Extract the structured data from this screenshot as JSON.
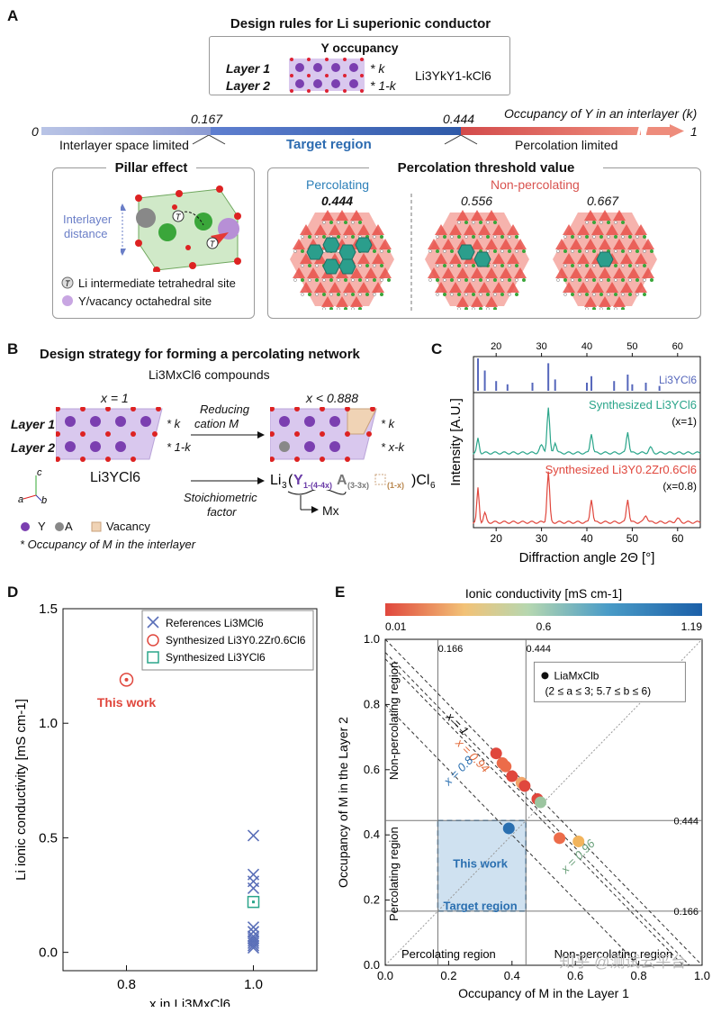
{
  "panelA": {
    "letter": "A",
    "title": "Design rules for Li superionic conductor",
    "y_occupancy": {
      "title": "Y occupancy",
      "layer1": "Layer 1",
      "layer2": "Layer 2",
      "k1": "* k",
      "k2": "* 1-k",
      "formula": "Li3YkY1-kCl6"
    },
    "bar": {
      "zero": "0",
      "v1": "0.167",
      "v2": "0.444",
      "one": "1",
      "axis_title": "Occupancy of Y in an interlayer (k)",
      "left_label": "Interlayer space limited",
      "mid_label": "Target region",
      "right_label": "Percolation limited"
    },
    "pillar": {
      "title": "Pillar effect",
      "interlayer": "Interlayer",
      "distance": "distance",
      "T": "T",
      "legend1": "Li intermediate tetrahedral site",
      "legend2": "Y/vacancy octahedral site"
    },
    "percolation": {
      "title": "Percolation threshold value",
      "percolating": "Percolating",
      "non_percolating": "Non-percolating",
      "v1": "0.444",
      "v2": "0.556",
      "v3": "0.667"
    }
  },
  "panelB": {
    "letter": "B",
    "title": "Design strategy for forming a percolating network",
    "compounds": "Li3MxCl6 compounds",
    "x1": "x = 1",
    "x2": "x < 0.888",
    "layer1": "Layer 1",
    "layer2": "Layer 2",
    "k": "* k",
    "one_k": "* 1-k",
    "x_k": "* x-k",
    "reducing1": "Reducing",
    "reducing2": "cation M",
    "li3ycl6": "Li3YCl6",
    "stoich1": "Stoichiometric",
    "stoich2": "factor",
    "mx": "Mx",
    "legend": [
      "Y",
      "A",
      "Vacancy"
    ],
    "footnote": "* Occupancy of M in the interlayer",
    "axes": [
      "c",
      "a",
      "b"
    ]
  },
  "panelC": {
    "letter": "C",
    "ylabel": "Intensity [A.U.]",
    "xlabel": "Diffraction angle 2Θ [°]",
    "top_ticks": [
      "20",
      "30",
      "40",
      "50",
      "60"
    ],
    "bottom_ticks": [
      "20",
      "30",
      "40",
      "50",
      "60"
    ],
    "label1": "Li3YCl6",
    "label2": "Synthesized Li3YCl6",
    "label2b": "(x=1)",
    "label3": "Synthesized Li3Y0.2Zr0.6Cl6",
    "label3b": "(x=0.8)",
    "colors": {
      "ref": "#5566bb",
      "teal": "#2aa58a",
      "red": "#e0473d"
    }
  },
  "panelD": {
    "letter": "D",
    "ylabel": "Li ionic conductivity [mS cm-1]",
    "xlabel": "x in Li3MxCl6",
    "yticks": [
      "0.0",
      "0.5",
      "1.0",
      "1.5"
    ],
    "xticks": [
      "0.8",
      "1.0"
    ],
    "legend": [
      "References Li3MCl6",
      "Synthesized Li3Y0.2Zr0.6Cl6",
      "Synthesized Li3YCl6"
    ],
    "annotation": "This work"
  },
  "panelE": {
    "letter": "E",
    "colorbar_title": "Ionic conductivity [mS cm-1]",
    "colorbar_ticks": [
      "0.01",
      "0.6",
      "1.19"
    ],
    "ylabel": "Occupancy of M in the Layer 2",
    "xlabel": "Occupancy of M in the Layer 1",
    "ticks": [
      "0.0",
      "0.2",
      "0.4",
      "0.6",
      "0.8",
      "1.0"
    ],
    "ref_lines": [
      "0.166",
      "0.444"
    ],
    "legend1": "LiaMxClb",
    "legend2": "(2 ≤ a ≤ 3; 5.7 ≤ b ≤ 6)",
    "line_labels": [
      "x = 1",
      "x = 0.94",
      "x = 0.8",
      "x = 0.96"
    ],
    "region_labels": [
      "Non-percolating region",
      "Percolating region",
      "Percolating region",
      "Non-percolating region"
    ],
    "this_work": "This work",
    "target": "Target region",
    "watermark": "知乎 @测试云平台"
  },
  "chart_data": [
    {
      "type": "scatter",
      "title": "",
      "xlabel": "x in Li3MxCl6",
      "ylabel": "Li ionic conductivity [mS cm-1]",
      "ylim": [
        -0.08,
        1.5
      ],
      "xlim": [
        0.7,
        1.1
      ],
      "series": [
        {
          "name": "References Li3MCl6",
          "marker": "x",
          "color": "#5a6fb8",
          "x": [
            1.0,
            1.0,
            1.0,
            1.0,
            1.0,
            1.0,
            1.0,
            1.0,
            1.0,
            1.0,
            1.0,
            1.0
          ],
          "y": [
            0.51,
            0.34,
            0.31,
            0.28,
            0.11,
            0.09,
            0.07,
            0.06,
            0.05,
            0.04,
            0.03,
            0.02
          ]
        },
        {
          "name": "Synthesized Li3Y0.2Zr0.6Cl6",
          "marker": "circle",
          "color": "#e0473d",
          "x": [
            0.8
          ],
          "y": [
            1.19
          ]
        },
        {
          "name": "Synthesized Li3YCl6",
          "marker": "square",
          "color": "#2aa58a",
          "x": [
            1.0
          ],
          "y": [
            0.22
          ]
        }
      ]
    },
    {
      "type": "scatter",
      "xlabel": "Occupancy of M in the Layer 1",
      "ylabel": "Occupancy of M in the Layer 2",
      "xlim": [
        0,
        1
      ],
      "ylim": [
        0,
        1
      ],
      "points": [
        {
          "x": 0.35,
          "y": 0.65,
          "c": 0.9
        },
        {
          "x": 0.37,
          "y": 0.62,
          "c": 0.7
        },
        {
          "x": 0.38,
          "y": 0.61,
          "c": 0.5
        },
        {
          "x": 0.4,
          "y": 0.58,
          "c": 0.8
        },
        {
          "x": 0.43,
          "y": 0.56,
          "c": 0.3
        },
        {
          "x": 0.44,
          "y": 0.55,
          "c": 0.85
        },
        {
          "x": 0.48,
          "y": 0.51,
          "c": 0.75
        },
        {
          "x": 0.49,
          "y": 0.5,
          "c": 0.1
        },
        {
          "x": 0.39,
          "y": 0.42,
          "c": 1.19
        },
        {
          "x": 0.55,
          "y": 0.39,
          "c": 0.55
        },
        {
          "x": 0.61,
          "y": 0.38,
          "c": 0.05
        }
      ],
      "lines": [
        {
          "label": "x = 1",
          "sum": 1.0
        },
        {
          "label": "x = 0.94",
          "sum": 0.94
        },
        {
          "label": "x = 0.96",
          "sum": 0.96
        },
        {
          "label": "x = 0.8",
          "sum": 0.8
        }
      ],
      "ref_values": [
        0.166,
        0.444
      ]
    }
  ]
}
